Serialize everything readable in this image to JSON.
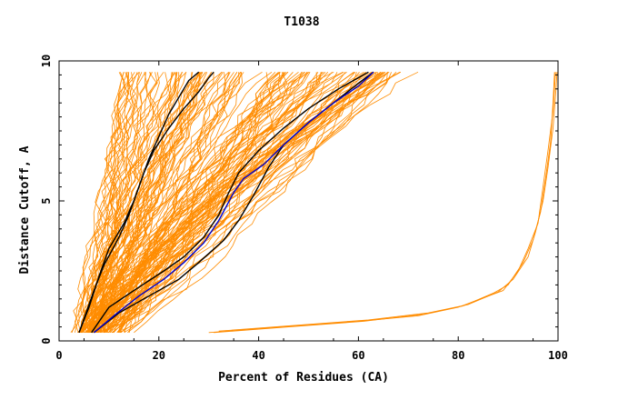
{
  "chart_data": {
    "type": "line",
    "title": "T1038",
    "xlabel": "Percent of Residues (CA)",
    "ylabel": "Distance Cutoff, A",
    "xlim": [
      0,
      100
    ],
    "ylim": [
      0,
      10
    ],
    "xticks": [
      0,
      20,
      40,
      60,
      80,
      100
    ],
    "yticks": [
      0,
      5,
      10
    ],
    "xtick_labels": [
      "0",
      "20",
      "40",
      "60",
      "80",
      "100"
    ],
    "ytick_labels": [
      "0",
      "5",
      "10"
    ],
    "grid": false,
    "legend": "none",
    "colors": {
      "models": "#ff8c00",
      "highlight": "#000000",
      "best": "#0000cc"
    },
    "series": [
      {
        "color": "#000000",
        "points": [
          [
            4,
            0.3
          ],
          [
            7,
            1.8
          ],
          [
            9,
            2.7
          ],
          [
            12,
            3.7
          ],
          [
            14,
            4.5
          ],
          [
            16,
            5.5
          ],
          [
            18,
            6.5
          ],
          [
            20,
            7.3
          ],
          [
            22,
            8.1
          ],
          [
            24,
            8.7
          ],
          [
            26,
            9.3
          ],
          [
            28,
            9.6
          ]
        ]
      },
      {
        "color": "#000000",
        "points": [
          [
            4,
            0.3
          ],
          [
            6,
            1.2
          ],
          [
            8,
            2.3
          ],
          [
            10,
            3.3
          ],
          [
            13,
            4.2
          ],
          [
            15,
            5.0
          ],
          [
            17,
            6.0
          ],
          [
            19,
            6.8
          ],
          [
            22,
            7.6
          ],
          [
            25,
            8.3
          ],
          [
            28,
            8.9
          ],
          [
            30,
            9.4
          ],
          [
            31,
            9.6
          ]
        ]
      },
      {
        "color": "#000000",
        "points": [
          [
            6.5,
            0.3
          ],
          [
            10,
            1.2
          ],
          [
            15,
            1.8
          ],
          [
            21,
            2.5
          ],
          [
            25,
            3.0
          ],
          [
            29,
            3.7
          ],
          [
            32,
            4.5
          ],
          [
            34,
            5.3
          ],
          [
            36,
            6.0
          ],
          [
            40,
            6.8
          ],
          [
            45,
            7.6
          ],
          [
            50,
            8.3
          ],
          [
            56,
            9.0
          ],
          [
            62,
            9.6
          ]
        ]
      },
      {
        "color": "#000000",
        "points": [
          [
            7,
            0.3
          ],
          [
            12,
            1.0
          ],
          [
            18,
            1.6
          ],
          [
            24,
            2.2
          ],
          [
            28,
            2.8
          ],
          [
            33,
            3.6
          ],
          [
            36,
            4.3
          ],
          [
            39,
            5.2
          ],
          [
            42,
            6.2
          ],
          [
            45,
            7.0
          ],
          [
            50,
            7.8
          ],
          [
            55,
            8.5
          ],
          [
            60,
            9.2
          ],
          [
            63,
            9.6
          ]
        ]
      },
      {
        "color": "#0000cc",
        "points": [
          [
            7,
            0.3
          ],
          [
            11,
            0.9
          ],
          [
            16,
            1.6
          ],
          [
            21,
            2.2
          ],
          [
            25,
            2.8
          ],
          [
            29,
            3.5
          ],
          [
            32,
            4.3
          ],
          [
            35,
            5.3
          ],
          [
            37,
            5.8
          ],
          [
            41,
            6.3
          ],
          [
            45,
            7.0
          ],
          [
            50,
            7.8
          ],
          [
            55,
            8.5
          ],
          [
            60,
            9.1
          ],
          [
            63,
            9.6
          ]
        ]
      },
      {
        "color": "#ff8c00",
        "points": [
          [
            30,
            0.3
          ],
          [
            45,
            0.5
          ],
          [
            60,
            0.7
          ],
          [
            72,
            0.9
          ],
          [
            80,
            1.2
          ],
          [
            86,
            1.6
          ],
          [
            89,
            1.8
          ],
          [
            92,
            2.5
          ],
          [
            94,
            3.3
          ],
          [
            96,
            4.2
          ],
          [
            97,
            5.5
          ],
          [
            98,
            6.8
          ],
          [
            99,
            8.2
          ],
          [
            99.5,
            9.6
          ]
        ]
      },
      {
        "color": "#ff8c00",
        "points": [
          [
            31,
            0.3
          ],
          [
            46,
            0.5
          ],
          [
            61,
            0.7
          ],
          [
            73,
            0.95
          ],
          [
            81,
            1.25
          ],
          [
            87,
            1.7
          ],
          [
            90,
            2.0
          ],
          [
            93,
            2.8
          ],
          [
            95,
            3.6
          ],
          [
            96.5,
            4.6
          ],
          [
            97.5,
            5.8
          ],
          [
            98.5,
            7.1
          ],
          [
            99,
            8.5
          ],
          [
            99.3,
            9.6
          ]
        ]
      },
      {
        "color": "#ff8c00",
        "points": [
          [
            32,
            0.35
          ],
          [
            47,
            0.55
          ],
          [
            62,
            0.75
          ],
          [
            74,
            1.0
          ],
          [
            82,
            1.3
          ],
          [
            88,
            1.75
          ],
          [
            91,
            2.2
          ],
          [
            94,
            3.0
          ],
          [
            95.5,
            3.9
          ],
          [
            97,
            5.0
          ],
          [
            98,
            6.2
          ],
          [
            99,
            7.6
          ],
          [
            99.6,
            9.0
          ],
          [
            99.8,
            9.6
          ]
        ]
      }
    ]
  }
}
